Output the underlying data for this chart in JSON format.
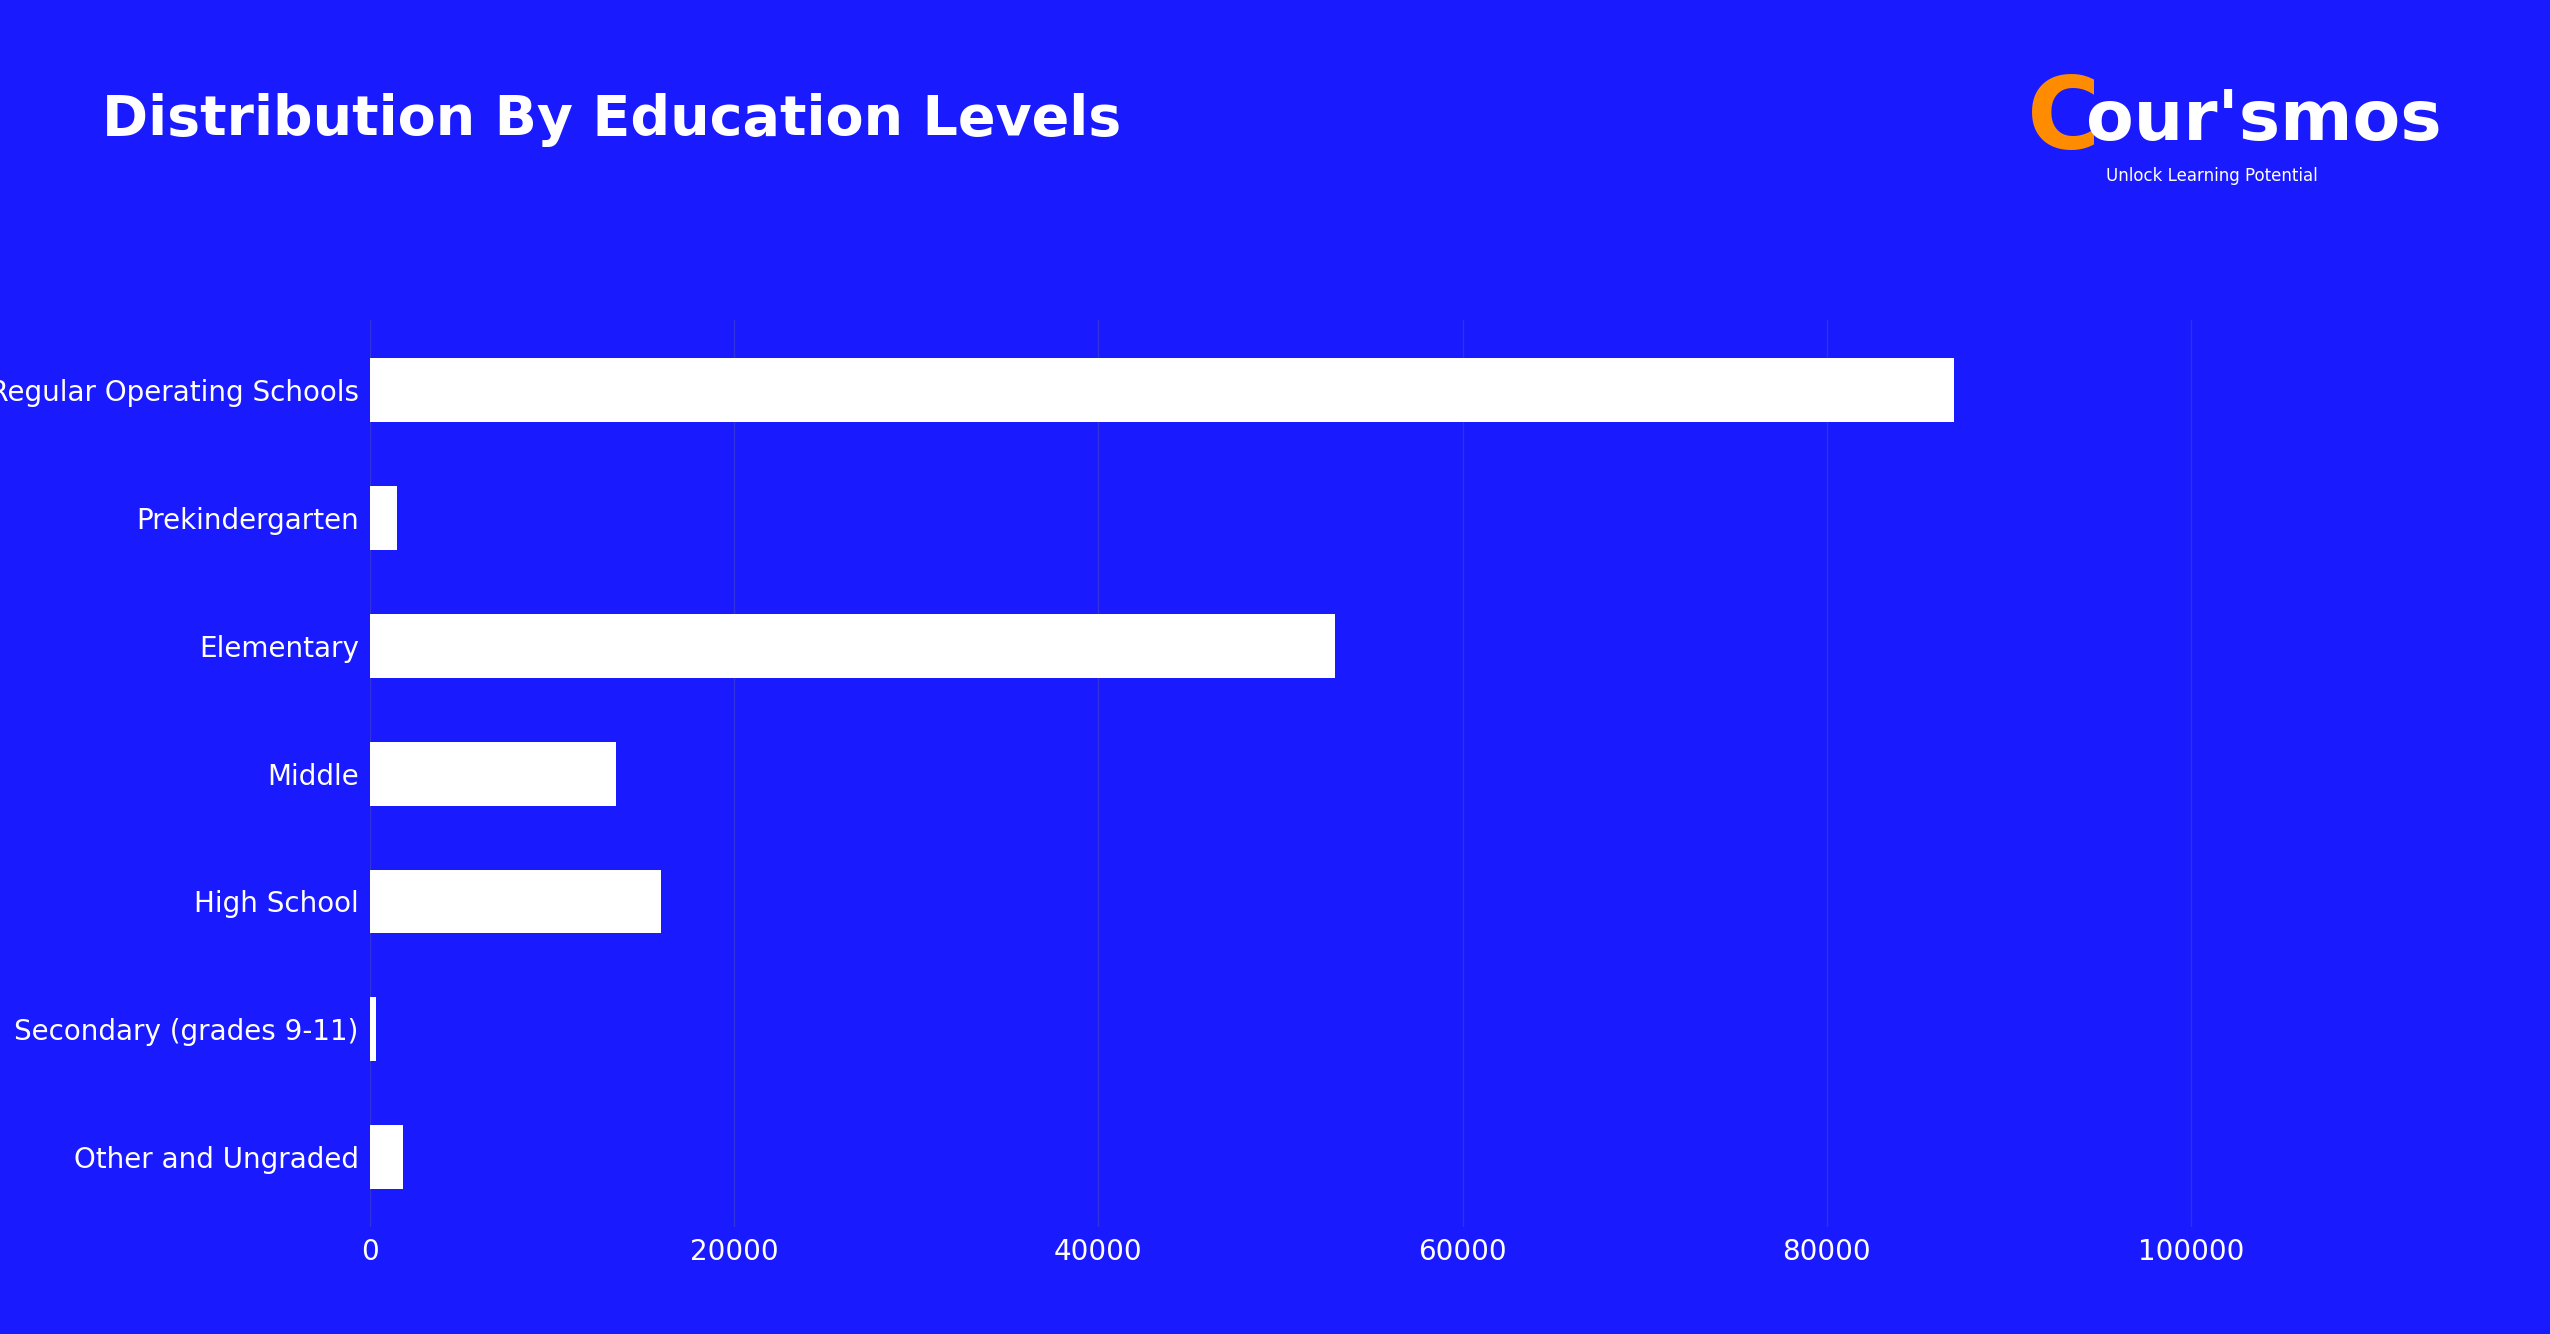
{
  "categories": [
    "Total Regular Operating Schools",
    "Prekindergarten",
    "Elementary",
    "Middle",
    "High School",
    "Secondary (grades 9-11)",
    "Other and Ungraded"
  ],
  "values": [
    87000,
    1500,
    53000,
    13500,
    16000,
    350,
    1800
  ],
  "bar_color": "#ffffff",
  "background_color": "#1a1aff",
  "title": "Distribution By Education Levels",
  "title_color": "#ffffff",
  "title_fontsize": 40,
  "label_color": "#ffffff",
  "label_fontsize": 20,
  "tick_color": "#ffffff",
  "tick_fontsize": 20,
  "xlim": [
    0,
    112000
  ],
  "xticks": [
    0,
    20000,
    40000,
    60000,
    80000,
    100000
  ],
  "xticklabels": [
    "0",
    "20000",
    "40000",
    "60000",
    "80000",
    "100000"
  ],
  "grid_color": "#3333dd",
  "bar_height": 0.5,
  "logo_orange": "C",
  "logo_white": "our'smos",
  "logo_subtext": "Unlock Learning Potential",
  "logo_orange_color": "#FF8C00",
  "logo_white_color": "#ffffff",
  "logo_subtext_color": "#ffffff"
}
